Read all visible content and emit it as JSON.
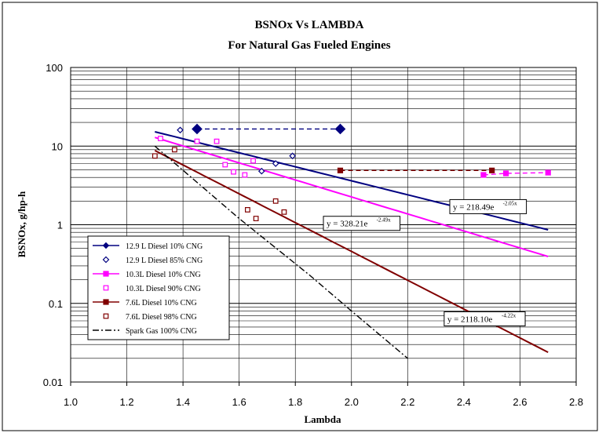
{
  "chart_data": {
    "type": "scatter",
    "title": "BSNOx Vs LAMBDA",
    "subtitle": "For Natural Gas Fueled Engines",
    "xlabel": "Lambda",
    "ylabel": "BSNOx, g/hp-h",
    "xlim": [
      1.0,
      2.8
    ],
    "ylim": [
      0.01,
      100
    ],
    "yscale": "log",
    "x_ticks": [
      "1.0",
      "1.2",
      "1.4",
      "1.6",
      "1.8",
      "2.0",
      "2.2",
      "2.4",
      "2.6",
      "2.8"
    ],
    "y_ticks": [
      "0.01",
      "0.1",
      "1",
      "10",
      "100"
    ],
    "grid": true,
    "legend_position": "bottom-left",
    "series": [
      {
        "name": "12.9 L Diesel 10% CNG",
        "color": "#000080",
        "marker": "diamond-filled",
        "dash": "6,4",
        "points": [
          [
            1.45,
            16.5
          ],
          [
            1.96,
            16.5
          ]
        ]
      },
      {
        "name": "12.9 L Diesel 85% CNG",
        "color": "#000080",
        "marker": "diamond-open",
        "points": [
          [
            1.39,
            16.0
          ],
          [
            1.73,
            6.0
          ],
          [
            1.68,
            4.8
          ],
          [
            1.79,
            7.5
          ]
        ]
      },
      {
        "name": "10.3L Diesel 10% CNG",
        "color": "#ff00ff",
        "marker": "square-filled",
        "dash": "6,4",
        "points": [
          [
            2.47,
            4.3
          ],
          [
            2.55,
            4.5
          ],
          [
            2.7,
            4.6
          ]
        ]
      },
      {
        "name": "10.3L Diesel 90% CNG",
        "color": "#ff00ff",
        "marker": "square-open",
        "points": [
          [
            1.32,
            12.5
          ],
          [
            1.45,
            11.5
          ],
          [
            1.52,
            11.5
          ],
          [
            1.55,
            5.8
          ],
          [
            1.58,
            4.7
          ],
          [
            1.62,
            4.3
          ],
          [
            1.65,
            6.5
          ]
        ]
      },
      {
        "name": "7.6L Diesel 10% CNG",
        "color": "#800000",
        "marker": "square-filled",
        "dash": "6,4",
        "points": [
          [
            1.96,
            4.9
          ],
          [
            2.5,
            4.9
          ]
        ]
      },
      {
        "name": "7.6L Diesel 98% CNG",
        "color": "#800000",
        "marker": "square-open",
        "points": [
          [
            1.3,
            7.5
          ],
          [
            1.37,
            9.0
          ],
          [
            1.63,
            1.55
          ],
          [
            1.66,
            1.2
          ],
          [
            1.73,
            2.0
          ],
          [
            1.76,
            1.45
          ]
        ]
      },
      {
        "name": "Spark Gas 100% CNG",
        "color": "#000000",
        "marker": "none",
        "dash": "8,3,2,3",
        "points": [
          [
            1.3,
            10.0
          ],
          [
            1.6,
            1.2
          ],
          [
            1.85,
            0.23
          ],
          [
            2.0,
            0.08
          ],
          [
            2.2,
            0.02
          ]
        ]
      }
    ],
    "trendlines": [
      {
        "series": "12.9 L Diesel 85% CNG",
        "color": "#000080",
        "a": 218.49,
        "b": -2.05,
        "x_range": [
          1.3,
          2.7
        ],
        "label_base": "y = 218.49e",
        "label_exp": "-2.05x"
      },
      {
        "series": "10.3L Diesel 90% CNG",
        "color": "#ff00ff",
        "a": 328.21,
        "b": -2.49,
        "x_range": [
          1.3,
          2.7
        ],
        "label_base": "y = 328.21e",
        "label_exp": "-2.49x"
      },
      {
        "series": "7.6L Diesel 98% CNG",
        "color": "#800000",
        "a": 2118.1,
        "b": -4.22,
        "x_range": [
          1.3,
          2.7
        ],
        "label_base": "y = 2118.10e",
        "label_exp": "-4.22x"
      }
    ]
  }
}
